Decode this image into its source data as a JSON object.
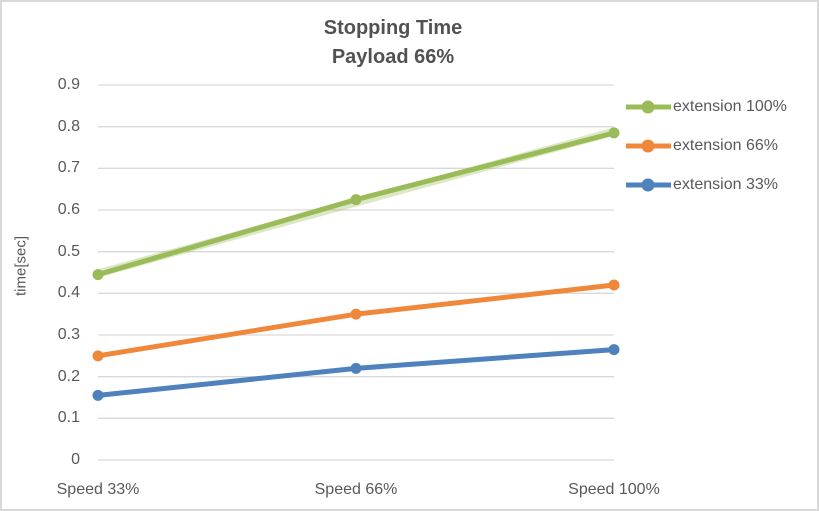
{
  "chart_data": {
    "type": "line",
    "title": "Stopping Time",
    "subtitle": "Payload 66%",
    "ylabel": "time[sec]",
    "xlabel": "",
    "categories": [
      "Speed 33%",
      "Speed 66%",
      "Speed 100%"
    ],
    "series": [
      {
        "name": "extension 100%",
        "color": "#9BBB59",
        "values": [
          0.445,
          0.625,
          0.785
        ]
      },
      {
        "name": "extension 66%",
        "color": "#F0883C",
        "values": [
          0.25,
          0.35,
          0.42
        ]
      },
      {
        "name": "extension 33%",
        "color": "#4F81BD",
        "values": [
          0.155,
          0.22,
          0.265
        ]
      }
    ],
    "trendline": {
      "for": "extension 100%",
      "color": "#9BBB59",
      "opacity": 0.35,
      "values": [
        0.448,
        0.788
      ]
    },
    "ylim": [
      0,
      0.9
    ],
    "y_ticks": [
      "0",
      "0.1",
      "0.2",
      "0.3",
      "0.4",
      "0.5",
      "0.6",
      "0.7",
      "0.8",
      "0.9"
    ],
    "grid": true,
    "legend_position": "right",
    "colors": {
      "text": "#595959",
      "grid": "#D9D9D9",
      "title": "#525252",
      "border": "#D9D9D9",
      "background": "#FFFFFF"
    }
  }
}
